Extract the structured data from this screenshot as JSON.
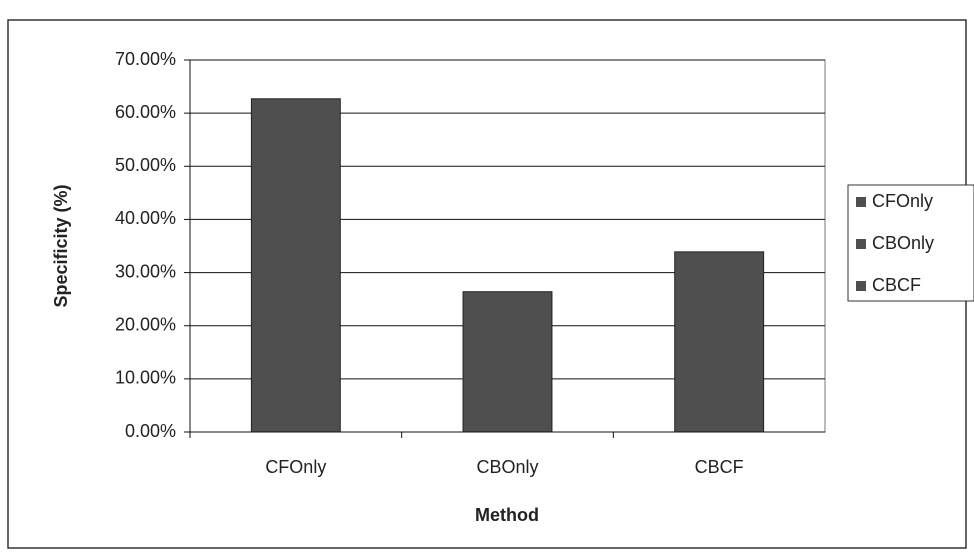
{
  "chart_data": {
    "type": "bar",
    "x_label": "Method",
    "y_label": "Specificity (%)",
    "categories": [
      "CFOnly",
      "CBOnly",
      "CBCF"
    ],
    "values": [
      62.7,
      26.4,
      33.9
    ],
    "color": "#4f4f4f",
    "ylim": [
      0,
      70
    ],
    "yticks": [
      {
        "value": 0,
        "label": "0.00%"
      },
      {
        "value": 10,
        "label": "10.00%"
      },
      {
        "value": 20,
        "label": "20.00%"
      },
      {
        "value": 30,
        "label": "30.00%"
      },
      {
        "value": 40,
        "label": "40.00%"
      },
      {
        "value": 50,
        "label": "50.00%"
      },
      {
        "value": 60,
        "label": "60.00%"
      },
      {
        "value": 70,
        "label": "70.00%"
      }
    ],
    "grid": true,
    "legend": "right"
  }
}
